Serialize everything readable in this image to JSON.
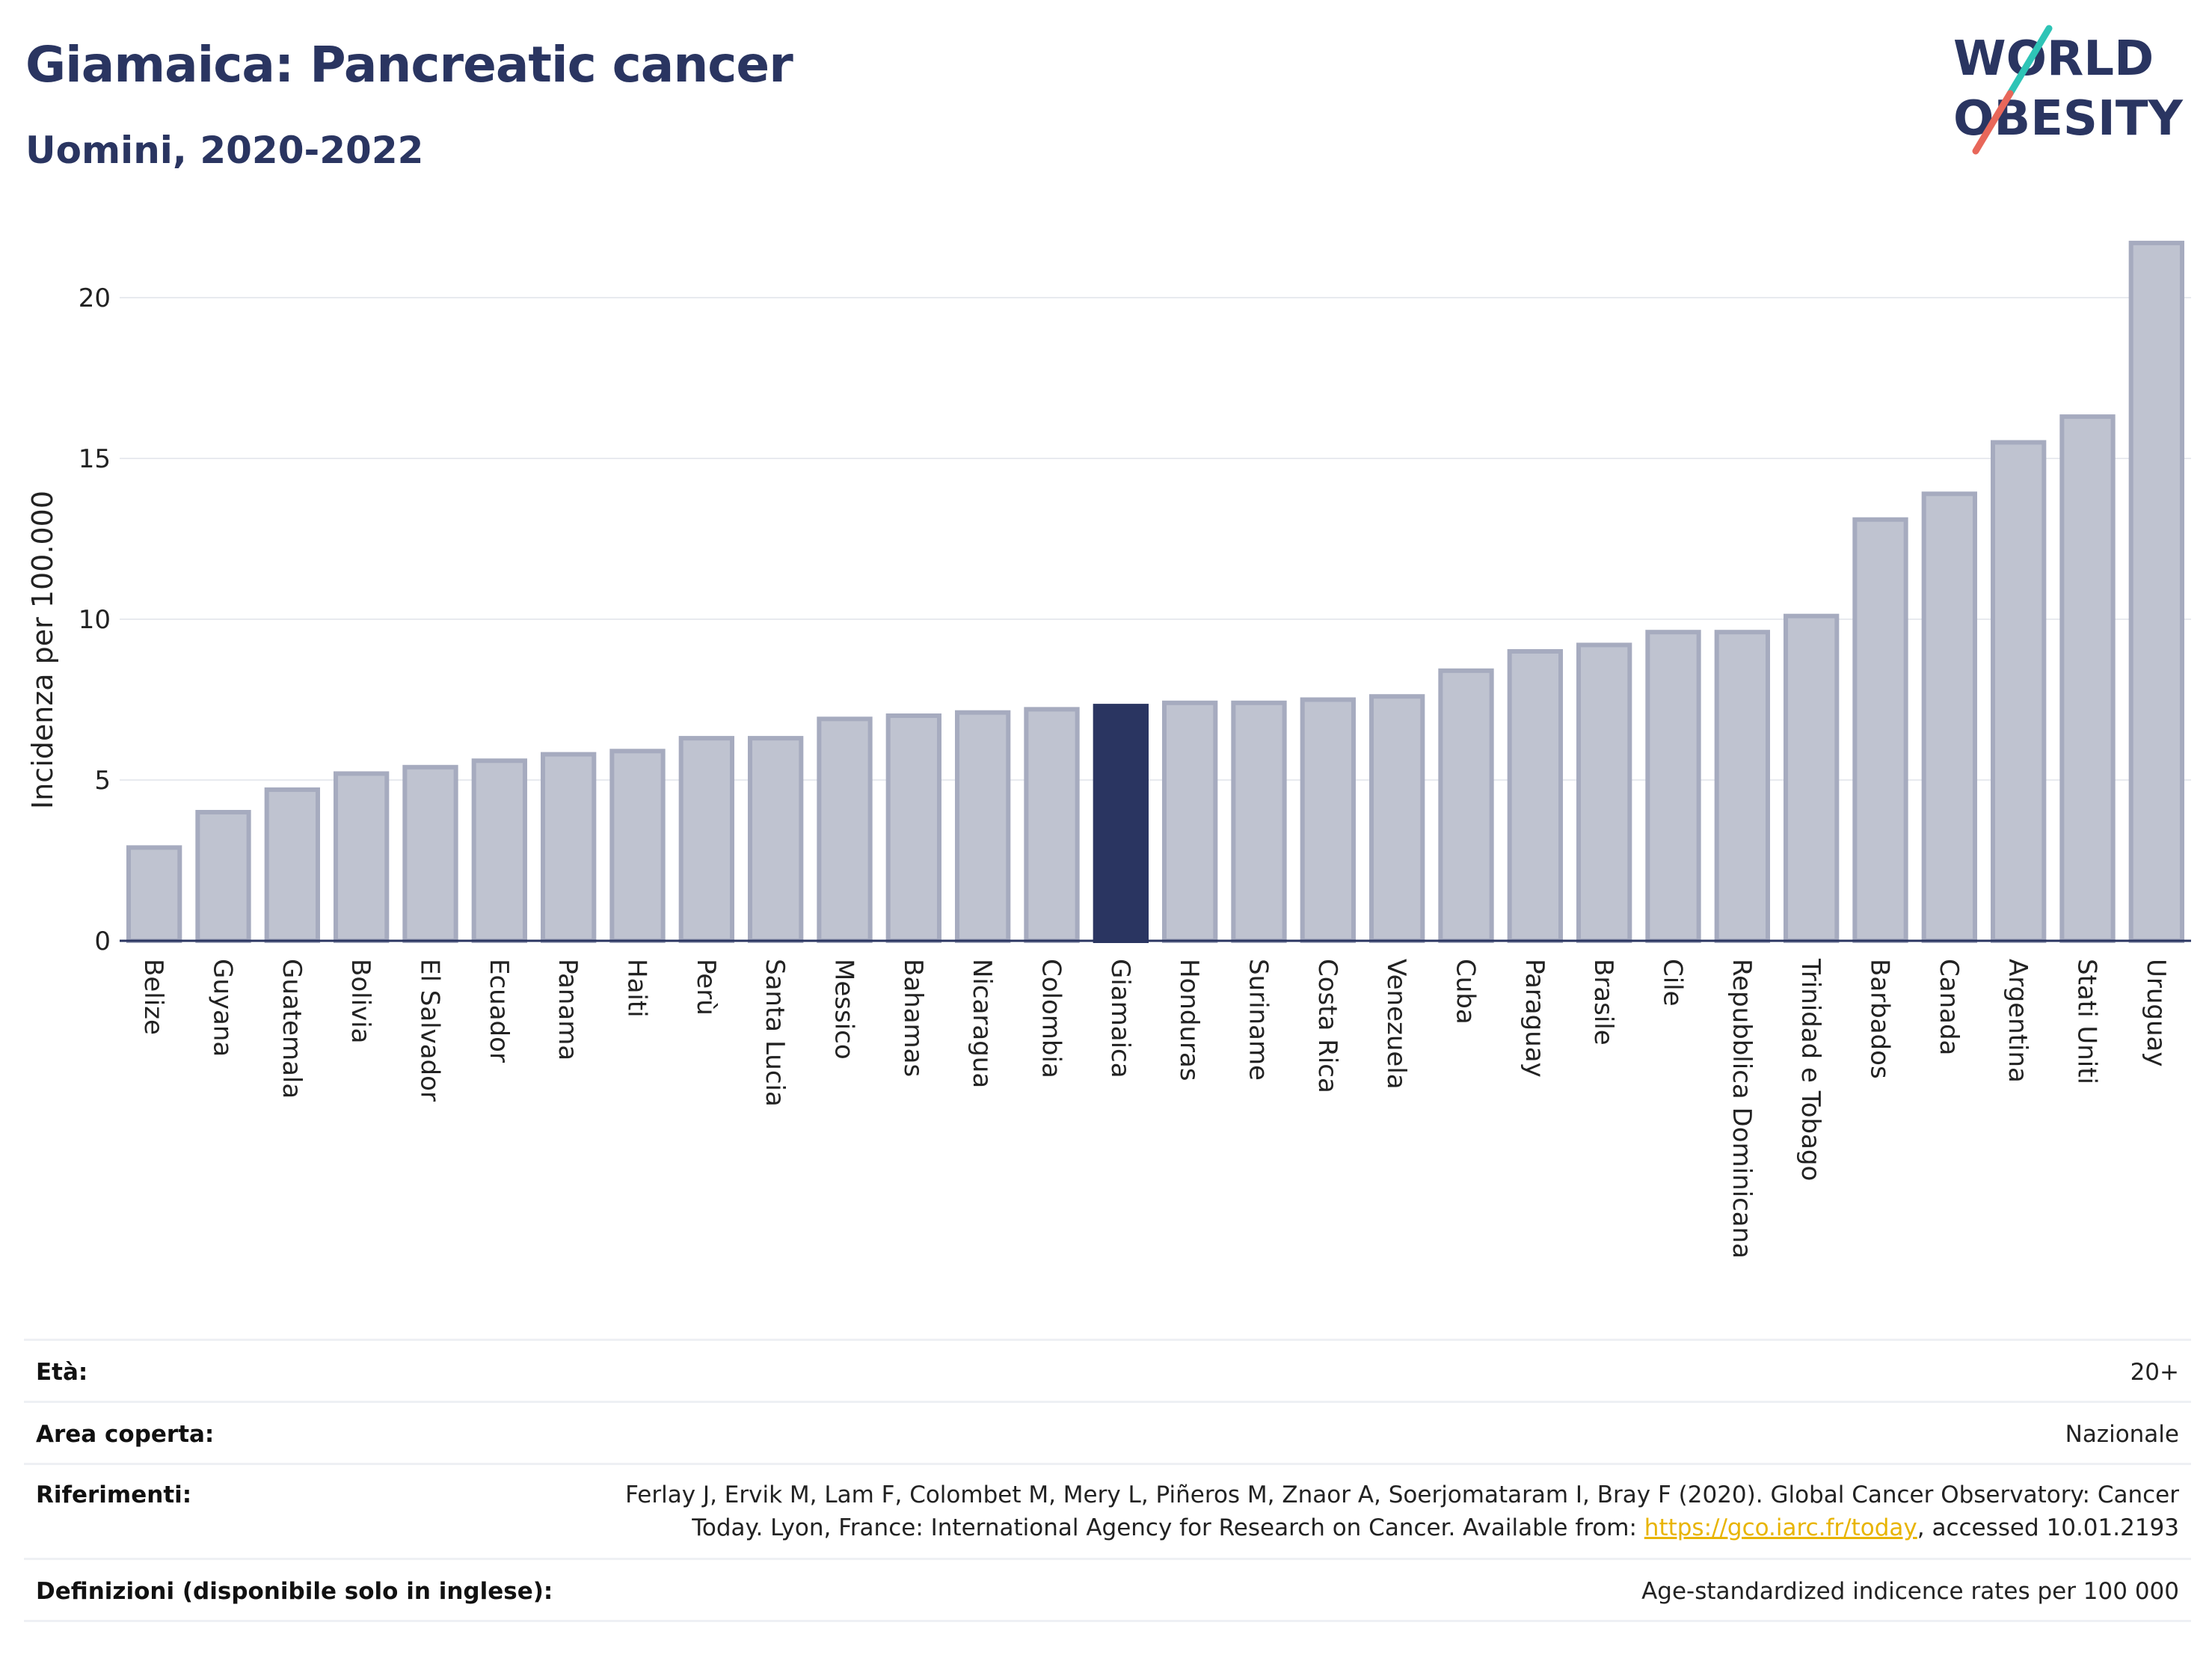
{
  "header": {
    "title": "Giamaica: Pancreatic cancer",
    "subtitle": "Uomini, 2020-2022"
  },
  "logo": {
    "line1": "WORLD",
    "line2": "OBESITY",
    "colors": {
      "text": "#2a3561",
      "slash_top": "#2ec4b6",
      "slash_bottom": "#e8675a"
    }
  },
  "chart_data": {
    "type": "bar",
    "ylabel": "Incidenza per 100.000",
    "xlabel": "",
    "ylim": [
      0,
      22
    ],
    "yticks": [
      0,
      5,
      10,
      15,
      20
    ],
    "grid": true,
    "highlight": "Giamaica",
    "colors": {
      "bar": "#bfc3d0",
      "bar_edge": "#a6abbf",
      "highlight": "#2a3561",
      "grid": "#e8eaef",
      "axis": "#2a3561"
    },
    "categories": [
      "Belize",
      "Guyana",
      "Guatemala",
      "Bolivia",
      "El Salvador",
      "Ecuador",
      "Panama",
      "Haiti",
      "Perù",
      "Santa Lucia",
      "Messico",
      "Bahamas",
      "Nicaragua",
      "Colombia",
      "Giamaica",
      "Honduras",
      "Suriname",
      "Costa Rica",
      "Venezuela",
      "Cuba",
      "Paraguay",
      "Brasile",
      "Cile",
      "Repubblica Dominicana",
      "Trinidad e Tobago",
      "Barbados",
      "Canada",
      "Argentina",
      "Stati Uniti",
      "Uruguay"
    ],
    "values": [
      2.9,
      4.0,
      4.7,
      5.2,
      5.4,
      5.6,
      5.8,
      5.9,
      6.3,
      6.3,
      6.9,
      7.0,
      7.1,
      7.2,
      7.3,
      7.4,
      7.4,
      7.5,
      7.6,
      8.4,
      9.0,
      9.2,
      9.6,
      9.6,
      10.1,
      13.1,
      13.9,
      15.5,
      16.3,
      21.7
    ]
  },
  "info": {
    "rows": [
      {
        "label": "Età:",
        "value": "20+"
      },
      {
        "label": "Area coperta:",
        "value": "Nazionale"
      },
      {
        "label": "Riferimenti:",
        "value_line1": "Ferlay J, Ervik M, Lam F, Colombet M, Mery L, Piñeros M, Znaor A, Soerjomataram I, Bray F (2020). Global Cancer Observatory: Cancer",
        "value_line2_pre": "Today. Lyon, France: International Agency for Research on Cancer. Available from: ",
        "link": "https://gco.iarc.fr/today",
        "value_line2_post": ", accessed 10.01.2193"
      },
      {
        "label": "Definizioni (disponibile solo in inglese):",
        "value": "Age-standardized indicence rates per 100 000"
      }
    ]
  }
}
